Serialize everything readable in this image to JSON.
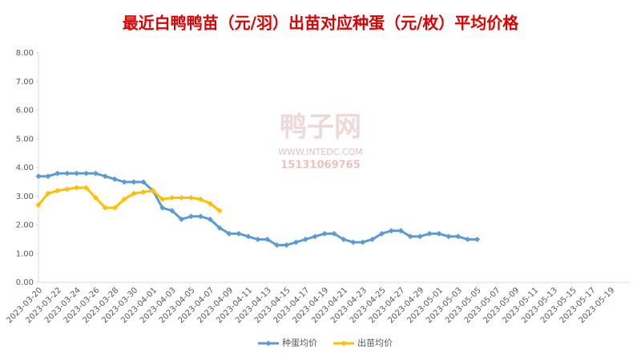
{
  "chart_data": {
    "type": "line",
    "title": "最近白鸭鸭苗（元/羽）出苗对应种蛋（元/枚）平均价格",
    "watermark": [
      "鸭子网",
      "WWW.INTEDC.COM",
      "15131069765"
    ],
    "categories": [
      "2023-03-20",
      null,
      "2023-03-22",
      null,
      "2023-03-24",
      null,
      "2023-03-26",
      null,
      "2023-03-28",
      null,
      "2023-03-30",
      null,
      "2023-04-01",
      null,
      "2023-04-03",
      null,
      "2023-04-05",
      null,
      "2023-04-07",
      null,
      "2023-04-09",
      null,
      "2023-04-11",
      null,
      "2023-04-13",
      null,
      "2023-04-15",
      null,
      "2023-04-17",
      null,
      "2023-04-19",
      null,
      "2023-04-21",
      null,
      "2023-04-23",
      null,
      "2023-04-25",
      null,
      "2023-04-27",
      null,
      "2023-04-29",
      null,
      "2023-05-01",
      null,
      "2023-05-03",
      null,
      "2023-05-05",
      null,
      "2023-05-07",
      null,
      "2023-05-09",
      null,
      "2023-05-11",
      null,
      "2023-05-13",
      null,
      "2023-05-15",
      null,
      "2023-05-17",
      null,
      "2023-05-19",
      null
    ],
    "series": [
      {
        "name": "种蛋均价",
        "color": "#5b9bd5",
        "values": [
          3.7,
          3.7,
          3.8,
          3.8,
          3.8,
          3.8,
          3.8,
          3.7,
          3.6,
          3.5,
          3.5,
          3.5,
          3.2,
          2.6,
          2.5,
          2.2,
          2.3,
          2.3,
          2.2,
          1.9,
          1.7,
          1.7,
          1.6,
          1.5,
          1.5,
          1.3,
          1.3,
          1.4,
          1.5,
          1.6,
          1.7,
          1.7,
          1.5,
          1.4,
          1.4,
          1.5,
          1.7,
          1.8,
          1.8,
          1.6,
          1.6,
          1.7,
          1.7,
          1.6,
          1.6,
          1.5,
          1.5,
          null,
          null,
          null,
          null,
          null,
          null,
          null,
          null,
          null,
          null,
          null,
          null,
          null,
          null,
          null
        ]
      },
      {
        "name": "出苗均价",
        "color": "#ffc000",
        "values": [
          2.7,
          3.1,
          3.2,
          3.25,
          3.3,
          3.3,
          2.95,
          2.6,
          2.6,
          2.9,
          3.1,
          3.15,
          3.2,
          2.9,
          2.95,
          2.95,
          2.95,
          2.9,
          2.75,
          2.5,
          null,
          null,
          null,
          null,
          null,
          null,
          null,
          null,
          null,
          null,
          null,
          null,
          null,
          null,
          null,
          null,
          null,
          null,
          null,
          null,
          null,
          null,
          null,
          null,
          null,
          null,
          null,
          null,
          null,
          null,
          null,
          null,
          null,
          null,
          null,
          null,
          null,
          null,
          null,
          null,
          null,
          null
        ]
      }
    ],
    "ylim": [
      0,
      8
    ],
    "yticks": [
      {
        "value": 0,
        "label": "0.00"
      },
      {
        "value": 1,
        "label": "1.00"
      },
      {
        "value": 2,
        "label": "2.00"
      },
      {
        "value": 3,
        "label": "3.00"
      },
      {
        "value": 4,
        "label": "4.00"
      },
      {
        "value": 5,
        "label": "5.00"
      },
      {
        "value": 6,
        "label": "6.00"
      },
      {
        "value": 7,
        "label": "7.00"
      },
      {
        "value": 8,
        "label": "8.00"
      }
    ],
    "legend": "bottom"
  }
}
